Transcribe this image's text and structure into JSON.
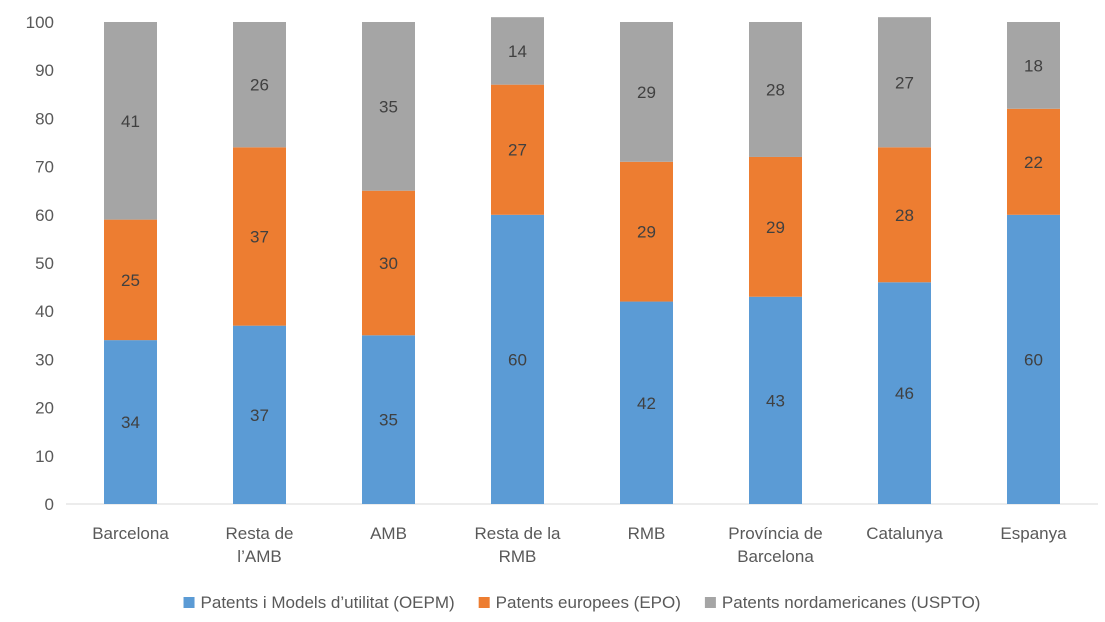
{
  "chart_data": {
    "type": "bar",
    "stacked": true,
    "title": "",
    "xlabel": "",
    "ylabel": "",
    "ylim": [
      0,
      100
    ],
    "yticks": [
      0,
      10,
      20,
      30,
      40,
      50,
      60,
      70,
      80,
      90,
      100
    ],
    "grid": false,
    "legend_position": "bottom",
    "categories": [
      [
        "Barcelona"
      ],
      [
        "Resta de",
        "l’AMB"
      ],
      [
        "AMB"
      ],
      [
        "Resta de la",
        "RMB"
      ],
      [
        "RMB"
      ],
      [
        "Província de",
        "Barcelona"
      ],
      [
        "Catalunya"
      ],
      [
        "Espanya"
      ]
    ],
    "series": [
      {
        "name": "Patents i Models d’utilitat (OEPM)",
        "color": "#5B9BD5",
        "values": [
          34,
          37,
          35,
          60,
          42,
          43,
          46,
          60
        ]
      },
      {
        "name": "Patents europees (EPO)",
        "color": "#ED7D31",
        "values": [
          25,
          37,
          30,
          27,
          29,
          29,
          28,
          22
        ]
      },
      {
        "name": "Patents nordamericanes (USPTO)",
        "color": "#A5A5A5",
        "values": [
          41,
          26,
          35,
          14,
          29,
          28,
          27,
          18
        ]
      }
    ]
  }
}
